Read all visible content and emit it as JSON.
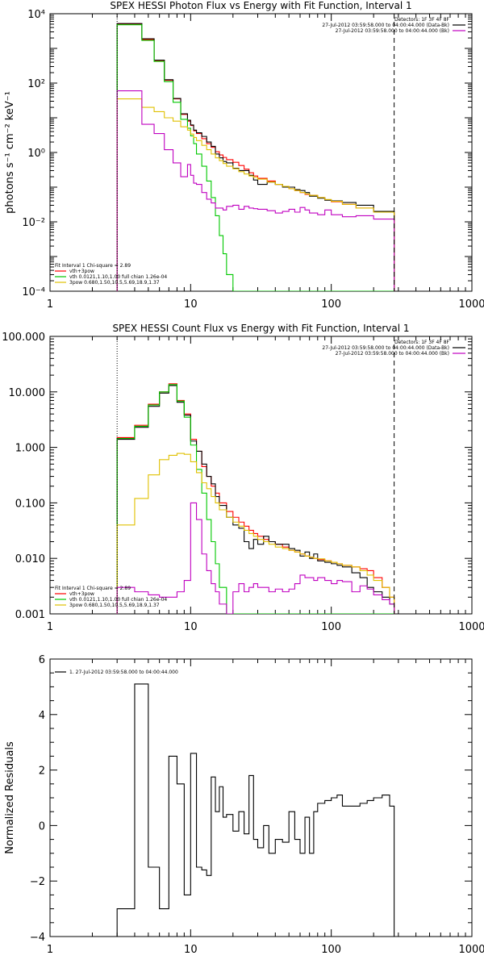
{
  "colors": {
    "data": "#000000",
    "background": "#c000c0",
    "total_fit": "#ff0000",
    "thermal": "#00c800",
    "power_law": "#e0c000"
  },
  "chart_data": [
    {
      "type": "line",
      "title": "SPEX HESSI Photon Flux vs Energy with Fit Function, Interval 1",
      "ylabel": "photons s⁻¹ cm⁻² keV⁻¹",
      "xscale": "log",
      "yscale": "log",
      "xlim": [
        1,
        1000
      ],
      "ylim": [
        0.0001,
        10000
      ],
      "x_ticks": [
        {
          "v": 1,
          "t": "1"
        },
        {
          "v": 10,
          "t": "10"
        },
        {
          "v": 100,
          "t": "100"
        },
        {
          "v": 1000,
          "t": "1000"
        }
      ],
      "y_ticks": [
        {
          "v": 0.0001,
          "t": "10⁻⁴"
        },
        {
          "v": 0.01,
          "t": "10⁻²"
        },
        {
          "v": 1,
          "t": "10⁰"
        },
        {
          "v": 100,
          "t": "10²"
        },
        {
          "v": 10000,
          "t": "10⁴"
        }
      ],
      "vlines": [
        {
          "x": 3,
          "style": "dotted"
        },
        {
          "x": 280,
          "style": "dashed"
        }
      ],
      "info_lines": [
        {
          "text": "Detectors: 1F 3F 4F 8F",
          "legend_color": ""
        },
        {
          "text": "27-Jul-2012 03:59:58.000 to 04:00:44.000 (Data-Bk)",
          "legend_color": "data"
        },
        {
          "text": "27-Jul-2012 03:59:58.000 to 04:00:44.000 (Bk)",
          "legend_color": "background"
        }
      ],
      "fit_legend": [
        {
          "text": "Fit Interval 1    Chi-square = 2.89",
          "color": ""
        },
        {
          "text": "vth+3pow",
          "color": "total_fit"
        },
        {
          "text": "vth 0.0121,1.10,1.00  full chian 1.26e-04",
          "color": "thermal"
        },
        {
          "text": "3pow 0.680,1.50,10.5,5.69,18.9,1.37",
          "color": "power_law"
        }
      ],
      "edges": [
        3.0,
        3.5,
        4.0,
        4.5,
        5.0,
        5.5,
        6.0,
        6.5,
        7.0,
        7.5,
        8.0,
        8.5,
        9.0,
        9.5,
        10.0,
        10.5,
        11.0,
        12.0,
        13.0,
        14.0,
        15.0,
        16.0,
        17.0,
        18.0,
        20.0,
        22.0,
        24.0,
        26.0,
        28.0,
        30.0,
        35.0,
        40.0,
        45.0,
        50.0,
        55.0,
        60.0,
        65.0,
        70.0,
        80.0,
        90.0,
        100.0,
        120.0,
        150.0,
        200.0,
        280.0
      ],
      "series": [
        {
          "color": "total_fit",
          "values": [
            5000,
            5000,
            5000,
            1800,
            1800,
            450,
            450,
            120,
            120,
            35,
            35,
            12.5,
            12.5,
            8,
            6,
            4.2,
            3.5,
            2.5,
            1.8,
            1.4,
            1.05,
            0.85,
            0.72,
            0.62,
            0.52,
            0.42,
            0.33,
            0.26,
            0.21,
            0.18,
            0.15,
            0.12,
            0.105,
            0.09,
            0.08,
            0.07,
            0.062,
            0.058,
            0.05,
            0.043,
            0.038,
            0.032,
            0.025,
            0.019
          ]
        },
        {
          "color": "data",
          "values": [
            5200,
            5200,
            5200,
            1900,
            1900,
            460,
            460,
            125,
            125,
            36,
            36,
            13,
            13,
            8.5,
            6.2,
            4.4,
            3.7,
            2.9,
            2,
            1.5,
            0.9,
            0.7,
            0.55,
            0.5,
            0.35,
            0.3,
            0.3,
            0.22,
            0.16,
            0.12,
            0.14,
            0.12,
            0.1,
            0.1,
            0.085,
            0.08,
            0.07,
            0.055,
            0.048,
            0.042,
            0.04,
            0.036,
            0.03,
            0.02
          ]
        },
        {
          "color": "thermal",
          "values": [
            4800,
            4800,
            4800,
            1700,
            1700,
            420,
            420,
            110,
            110,
            28,
            28,
            9,
            9,
            5,
            3,
            1.8,
            0.9,
            0.4,
            0.15,
            0.05,
            0.015,
            0.004,
            0.0012,
            0.0003,
            0.0001,
            0.0001,
            0.0001,
            0.0001,
            0.0001,
            0.0001,
            0.0001,
            0.0001,
            0.0001,
            0.0001,
            0.0001,
            0.0001,
            0.0001,
            0.0001,
            0.0001,
            0.0001,
            0.0001,
            0.0001,
            0.0001,
            0.0001
          ]
        },
        {
          "color": "power_law",
          "values": [
            35,
            35,
            35,
            20,
            20,
            15,
            15,
            10,
            10,
            8,
            8,
            5.5,
            5.5,
            4.4,
            3.4,
            2.7,
            2.2,
            1.6,
            1.2,
            0.9,
            0.7,
            0.58,
            0.48,
            0.4,
            0.34,
            0.28,
            0.24,
            0.21,
            0.19,
            0.17,
            0.14,
            0.12,
            0.105,
            0.09,
            0.08,
            0.071,
            0.064,
            0.058,
            0.05,
            0.044,
            0.039,
            0.032,
            0.025,
            0.019
          ]
        },
        {
          "color": "background",
          "values": [
            60,
            60,
            60,
            6.5,
            6.5,
            3.5,
            3.5,
            1.2,
            1.2,
            0.5,
            0.5,
            0.2,
            0.2,
            0.45,
            0.22,
            0.13,
            0.12,
            0.07,
            0.045,
            0.035,
            0.025,
            0.025,
            0.022,
            0.028,
            0.03,
            0.023,
            0.028,
            0.025,
            0.024,
            0.023,
            0.021,
            0.018,
            0.02,
            0.023,
            0.019,
            0.026,
            0.022,
            0.018,
            0.016,
            0.022,
            0.016,
            0.014,
            0.015,
            0.012
          ]
        }
      ]
    },
    {
      "type": "line",
      "title": "SPEX HESSI Count Flux vs Energy with Fit Function, Interval 1",
      "ylabel": "",
      "xscale": "log",
      "yscale": "log",
      "xlim": [
        1,
        1000
      ],
      "ylim": [
        0.001,
        100
      ],
      "x_ticks": [
        {
          "v": 1,
          "t": "1"
        },
        {
          "v": 10,
          "t": "10"
        },
        {
          "v": 100,
          "t": "100"
        },
        {
          "v": 1000,
          "t": "1000"
        }
      ],
      "y_ticks": [
        {
          "v": 0.001,
          "t": "0.001"
        },
        {
          "v": 0.01,
          "t": "0.010"
        },
        {
          "v": 0.1,
          "t": "0.100"
        },
        {
          "v": 1,
          "t": "1.000"
        },
        {
          "v": 10,
          "t": "10.000"
        },
        {
          "v": 100,
          "t": "100.000"
        }
      ],
      "vlines": [
        {
          "x": 3,
          "style": "dotted"
        },
        {
          "x": 280,
          "style": "dashed"
        }
      ],
      "info_lines": [
        {
          "text": "Detectors: 1F 3F 4F 8F",
          "legend_color": ""
        },
        {
          "text": "27-Jul-2012 03:59:58.000 to 04:00:44.000 (Data-Bk)",
          "legend_color": "data"
        },
        {
          "text": "27-Jul-2012 03:59:58.000 to 04:00:44.000 (Bk)",
          "legend_color": "background"
        }
      ],
      "fit_legend": [
        {
          "text": "Fit Interval 1    Chi-square = 2.89",
          "color": ""
        },
        {
          "text": "vth+3pow",
          "color": "total_fit"
        },
        {
          "text": "vth 0.0121,1.10,1.00  full chian 1.26e-04",
          "color": "thermal"
        },
        {
          "text": "3pow 0.680,1.50,10.5,5.69,18.9,1.37",
          "color": "power_law"
        }
      ],
      "edges": [
        3.0,
        4.0,
        5.0,
        6.0,
        7.0,
        8.0,
        9.0,
        10.0,
        11.0,
        12.0,
        13.0,
        14.0,
        15.0,
        16.0,
        18.0,
        20.0,
        22.0,
        24.0,
        26.0,
        28.0,
        30.0,
        33.0,
        36.0,
        40.0,
        45.0,
        50.0,
        55.0,
        60.0,
        65.0,
        70.0,
        75.0,
        80.0,
        90.0,
        100.0,
        110.0,
        120.0,
        140.0,
        160.0,
        180.0,
        200.0,
        230.0,
        260.0,
        280.0
      ],
      "series": [
        {
          "color": "total_fit",
          "values": [
            1.5,
            2.5,
            6,
            10,
            14,
            7,
            4,
            1.4,
            0.85,
            0.45,
            0.3,
            0.2,
            0.15,
            0.1,
            0.07,
            0.055,
            0.045,
            0.038,
            0.032,
            0.028,
            0.025,
            0.022,
            0.02,
            0.018,
            0.016,
            0.014,
            0.013,
            0.012,
            0.011,
            0.0105,
            0.01,
            0.0095,
            0.009,
            0.0085,
            0.008,
            0.0075,
            0.007,
            0.0065,
            0.006,
            0.0045,
            0.003,
            0.002
          ]
        },
        {
          "color": "data",
          "values": [
            1.4,
            2.3,
            5.5,
            9.5,
            13,
            6.5,
            3.8,
            1.3,
            0.85,
            0.5,
            0.3,
            0.22,
            0.13,
            0.09,
            0.055,
            0.04,
            0.035,
            0.02,
            0.015,
            0.022,
            0.018,
            0.025,
            0.02,
            0.018,
            0.018,
            0.015,
            0.014,
            0.011,
            0.013,
            0.01,
            0.012,
            0.009,
            0.0085,
            0.008,
            0.0075,
            0.007,
            0.0055,
            0.0045,
            0.003,
            0.0025,
            0.002,
            0.0015
          ]
        },
        {
          "color": "thermal",
          "values": [
            1.45,
            2.4,
            5.8,
            10,
            13.5,
            6.8,
            3.5,
            1.1,
            0.4,
            0.15,
            0.05,
            0.02,
            0.008,
            0.003,
            0.001,
            0.001,
            0.001,
            0.001,
            0.001,
            0.001,
            0.001,
            0.001,
            0.001,
            0.001,
            0.001,
            0.001,
            0.001,
            0.001,
            0.001,
            0.001,
            0.001,
            0.001,
            0.001,
            0.001,
            0.001,
            0.001,
            0.001,
            0.001,
            0.001,
            0.001,
            0.001,
            0.001
          ]
        },
        {
          "color": "power_law",
          "values": [
            0.04,
            0.12,
            0.32,
            0.6,
            0.72,
            0.78,
            0.75,
            0.55,
            0.35,
            0.23,
            0.18,
            0.13,
            0.1,
            0.075,
            0.055,
            0.045,
            0.038,
            0.032,
            0.028,
            0.025,
            0.022,
            0.02,
            0.018,
            0.016,
            0.015,
            0.014,
            0.013,
            0.012,
            0.011,
            0.0105,
            0.01,
            0.0098,
            0.009,
            0.0085,
            0.008,
            0.0075,
            0.007,
            0.006,
            0.005,
            0.004,
            0.003,
            0.002
          ]
        },
        {
          "color": "background",
          "values": [
            0.003,
            0.0025,
            0.0022,
            0.002,
            0.002,
            0.0025,
            0.004,
            0.1,
            0.05,
            0.012,
            0.006,
            0.0035,
            0.0025,
            0.0015,
            0.001,
            0.0025,
            0.0035,
            0.0025,
            0.003,
            0.0035,
            0.003,
            0.003,
            0.0025,
            0.0028,
            0.0025,
            0.0028,
            0.0035,
            0.005,
            0.0045,
            0.0045,
            0.004,
            0.0045,
            0.004,
            0.0035,
            0.004,
            0.0038,
            0.0025,
            0.0032,
            0.0028,
            0.0022,
            0.0018,
            0.0015
          ]
        }
      ]
    },
    {
      "type": "line",
      "title": "",
      "ylabel": "Normalized Residuals",
      "xscale": "log",
      "yscale": "linear",
      "xlim": [
        1,
        1000
      ],
      "ylim": [
        -4,
        6
      ],
      "x_ticks": [
        {
          "v": 1,
          "t": "1"
        },
        {
          "v": 10,
          "t": "10"
        },
        {
          "v": 100,
          "t": "100"
        },
        {
          "v": 1000,
          "t": "1000"
        }
      ],
      "y_ticks": [
        {
          "v": -4,
          "t": "−4"
        },
        {
          "v": -2,
          "t": "−2"
        },
        {
          "v": 0,
          "t": "0"
        },
        {
          "v": 2,
          "t": "2"
        },
        {
          "v": 4,
          "t": "4"
        },
        {
          "v": 6,
          "t": "6"
        }
      ],
      "vlines": [],
      "info_lines": [],
      "fit_legend": [
        {
          "text": "1. 27-Jul-2012 03:59:58.000 to 04:00:44.000",
          "color": "data"
        }
      ],
      "edges": [
        3.0,
        4.0,
        5.0,
        6.0,
        7.0,
        8.0,
        9.0,
        10.0,
        11.0,
        12.0,
        13.0,
        14.0,
        15.0,
        16.0,
        17.0,
        18.0,
        20.0,
        22.0,
        24.0,
        26.0,
        28.0,
        30.0,
        33.0,
        36.0,
        40.0,
        45.0,
        50.0,
        55.0,
        60.0,
        65.0,
        70.0,
        75.0,
        80.0,
        90.0,
        100.0,
        110.0,
        120.0,
        140.0,
        160.0,
        180.0,
        200.0,
        230.0,
        260.0,
        280.0
      ],
      "series": [
        {
          "color": "data",
          "values": [
            -3,
            5.1,
            -1.5,
            -3,
            2.5,
            1.5,
            -2.5,
            2.6,
            -1.5,
            -1.6,
            -1.8,
            1.75,
            0.5,
            1.4,
            0.3,
            0.4,
            -0.2,
            0.5,
            -0.3,
            1.8,
            -0.5,
            -0.8,
            0.0,
            -1.0,
            -0.5,
            -0.6,
            0.5,
            -0.5,
            -1.0,
            0.3,
            -1.0,
            0.5,
            0.8,
            0.9,
            1.0,
            1.1,
            0.7,
            0.7,
            0.8,
            0.9,
            1.0,
            1.1,
            0.7
          ]
        }
      ]
    }
  ]
}
